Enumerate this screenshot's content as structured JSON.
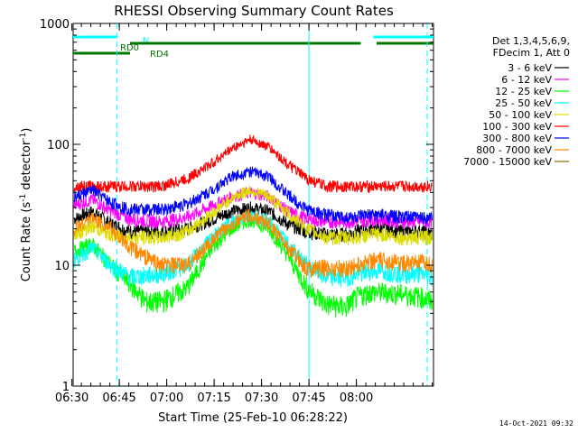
{
  "chart_data": {
    "type": "line",
    "title": "RHESSI Observing Summary Count Rates",
    "xlabel": "Start Time (25-Feb-10 06:28:22)",
    "ylabel_parts": [
      "Count Rate (s",
      "-1",
      " detector",
      "-1",
      ")"
    ],
    "yscale": "log",
    "ylim": [
      1,
      1000
    ],
    "xlim_minutes": [
      -28,
      86
    ],
    "x_ticks": [
      {
        "label": "06:30",
        "minute": -28.4
      },
      {
        "label": "06:45",
        "minute": -13.4
      },
      {
        "label": "07:00",
        "minute": 1.6
      },
      {
        "label": "07:15",
        "minute": 16.6
      },
      {
        "label": "07:30",
        "minute": 31.6
      },
      {
        "label": "07:45",
        "minute": 46.6
      },
      {
        "label": "08:00",
        "minute": 61.6
      }
    ],
    "y_ticks": [
      {
        "label": "1",
        "value": 1
      },
      {
        "label": "10",
        "value": 10
      },
      {
        "label": "100",
        "value": 100
      },
      {
        "label": "1000",
        "value": 1000
      }
    ],
    "legend_header": [
      "Det 1,3,4,5,6,9,",
      "FDecim 1, Att 0"
    ],
    "series": [
      {
        "name": "3 - 6 keV",
        "color": "#000000",
        "points": [
          [
            -28,
            24
          ],
          [
            -22,
            28
          ],
          [
            -16,
            22
          ],
          [
            -10,
            19
          ],
          [
            0,
            19
          ],
          [
            8,
            20
          ],
          [
            16,
            24
          ],
          [
            22,
            28
          ],
          [
            28,
            30
          ],
          [
            34,
            28
          ],
          [
            40,
            22
          ],
          [
            46,
            19
          ],
          [
            52,
            18
          ],
          [
            58,
            18
          ],
          [
            62,
            19
          ],
          [
            66,
            20
          ],
          [
            70,
            20
          ],
          [
            76,
            19
          ],
          [
            82,
            19
          ],
          [
            86,
            18
          ]
        ]
      },
      {
        "name": "6 - 12 keV",
        "color": "#ff00ff",
        "points": [
          [
            -28,
            31
          ],
          [
            -22,
            35
          ],
          [
            -16,
            28
          ],
          [
            -10,
            24
          ],
          [
            0,
            23
          ],
          [
            8,
            25
          ],
          [
            16,
            31
          ],
          [
            22,
            37
          ],
          [
            28,
            40
          ],
          [
            34,
            37
          ],
          [
            40,
            28
          ],
          [
            46,
            24
          ],
          [
            52,
            23
          ],
          [
            58,
            23
          ],
          [
            62,
            23
          ],
          [
            66,
            24
          ],
          [
            70,
            24
          ],
          [
            76,
            23
          ],
          [
            82,
            23
          ],
          [
            86,
            23
          ]
        ]
      },
      {
        "name": "12 - 25 keV",
        "color": "#00ff00",
        "points": [
          [
            -28,
            13
          ],
          [
            -22,
            15
          ],
          [
            -16,
            10
          ],
          [
            -10,
            7
          ],
          [
            -5,
            5
          ],
          [
            0,
            5
          ],
          [
            8,
            6.5
          ],
          [
            16,
            14
          ],
          [
            22,
            20
          ],
          [
            28,
            24
          ],
          [
            34,
            20
          ],
          [
            40,
            12
          ],
          [
            46,
            6.5
          ],
          [
            52,
            4.8
          ],
          [
            58,
            4.5
          ],
          [
            62,
            5.5
          ],
          [
            66,
            6
          ],
          [
            70,
            6
          ],
          [
            76,
            5.8
          ],
          [
            82,
            5.5
          ],
          [
            86,
            5
          ]
        ]
      },
      {
        "name": "25 - 50 keV",
        "color": "#00ffff",
        "points": [
          [
            -28,
            11
          ],
          [
            -22,
            14
          ],
          [
            -16,
            10
          ],
          [
            -10,
            8
          ],
          [
            0,
            8.5
          ],
          [
            8,
            10
          ],
          [
            16,
            17
          ],
          [
            22,
            23
          ],
          [
            28,
            26
          ],
          [
            34,
            23
          ],
          [
            40,
            15
          ],
          [
            46,
            10
          ],
          [
            52,
            8
          ],
          [
            58,
            8
          ],
          [
            62,
            8.5
          ],
          [
            66,
            9
          ],
          [
            70,
            9
          ],
          [
            76,
            8.5
          ],
          [
            82,
            8.5
          ],
          [
            86,
            8
          ]
        ]
      },
      {
        "name": "50 - 100 keV",
        "color": "#dddd00",
        "points": [
          [
            -28,
            18
          ],
          [
            -22,
            21
          ],
          [
            -16,
            18
          ],
          [
            -10,
            17
          ],
          [
            0,
            17
          ],
          [
            8,
            19
          ],
          [
            16,
            27
          ],
          [
            22,
            36
          ],
          [
            28,
            42
          ],
          [
            34,
            37
          ],
          [
            40,
            27
          ],
          [
            46,
            20
          ],
          [
            52,
            17
          ],
          [
            58,
            17
          ],
          [
            62,
            17
          ],
          [
            66,
            18
          ],
          [
            70,
            18
          ],
          [
            76,
            17
          ],
          [
            82,
            17
          ],
          [
            86,
            17
          ]
        ]
      },
      {
        "name": "100 - 300 keV",
        "color": "#ff0000",
        "points": [
          [
            -28,
            45
          ],
          [
            -22,
            45
          ],
          [
            -16,
            45
          ],
          [
            -10,
            45
          ],
          [
            0,
            45
          ],
          [
            8,
            52
          ],
          [
            16,
            70
          ],
          [
            22,
            92
          ],
          [
            28,
            110
          ],
          [
            34,
            95
          ],
          [
            40,
            68
          ],
          [
            46,
            52
          ],
          [
            52,
            45
          ],
          [
            58,
            45
          ],
          [
            62,
            45
          ],
          [
            66,
            45
          ],
          [
            70,
            45
          ],
          [
            76,
            45
          ],
          [
            82,
            45
          ],
          [
            86,
            45
          ]
        ]
      },
      {
        "name": "300 - 800 keV",
        "color": "#0000ff",
        "points": [
          [
            -28,
            36
          ],
          [
            -22,
            42
          ],
          [
            -16,
            33
          ],
          [
            -10,
            29
          ],
          [
            0,
            29
          ],
          [
            8,
            32
          ],
          [
            16,
            42
          ],
          [
            22,
            54
          ],
          [
            28,
            60
          ],
          [
            34,
            54
          ],
          [
            40,
            38
          ],
          [
            46,
            29
          ],
          [
            52,
            26
          ],
          [
            58,
            25
          ],
          [
            62,
            25
          ],
          [
            66,
            26
          ],
          [
            70,
            26
          ],
          [
            76,
            25
          ],
          [
            82,
            25
          ],
          [
            86,
            25
          ]
        ]
      },
      {
        "name": "800 - 7000 keV",
        "color": "#ff8800",
        "points": [
          [
            -28,
            20
          ],
          [
            -22,
            25
          ],
          [
            -16,
            20
          ],
          [
            -10,
            14
          ],
          [
            0,
            10
          ],
          [
            8,
            10
          ],
          [
            16,
            16
          ],
          [
            22,
            22
          ],
          [
            28,
            26
          ],
          [
            34,
            22
          ],
          [
            40,
            14
          ],
          [
            46,
            9.5
          ],
          [
            52,
            9.5
          ],
          [
            58,
            9.5
          ],
          [
            62,
            10
          ],
          [
            66,
            11
          ],
          [
            70,
            11
          ],
          [
            76,
            10.5
          ],
          [
            82,
            10.5
          ],
          [
            86,
            10
          ]
        ]
      },
      {
        "name": "7000 - 15000 keV",
        "color": "#886600",
        "points": []
      }
    ],
    "mode_bars": [
      {
        "label": "N",
        "color": "#00ffff",
        "segments": [
          [
            -28,
            -14.2
          ],
          [
            67,
            86
          ]
        ]
      },
      {
        "label": "RD0",
        "color": "#007700",
        "segments": [
          [
            -10,
            63
          ],
          [
            68,
            86
          ]
        ]
      },
      {
        "label": "RD4",
        "color": "#007700",
        "segments": [
          [
            -28,
            -10
          ]
        ]
      }
    ],
    "vertical_markers": [
      {
        "minute": -14.2,
        "color": "#00ffff",
        "style": "dashed"
      },
      {
        "minute": 46.6,
        "color": "#00ffff",
        "style": "solid"
      },
      {
        "minute": 84,
        "color": "#00ffff",
        "style": "dashed"
      }
    ],
    "legend_placement": "top-right",
    "grid": false,
    "timestamp": "14-Oct-2021 09:32"
  }
}
